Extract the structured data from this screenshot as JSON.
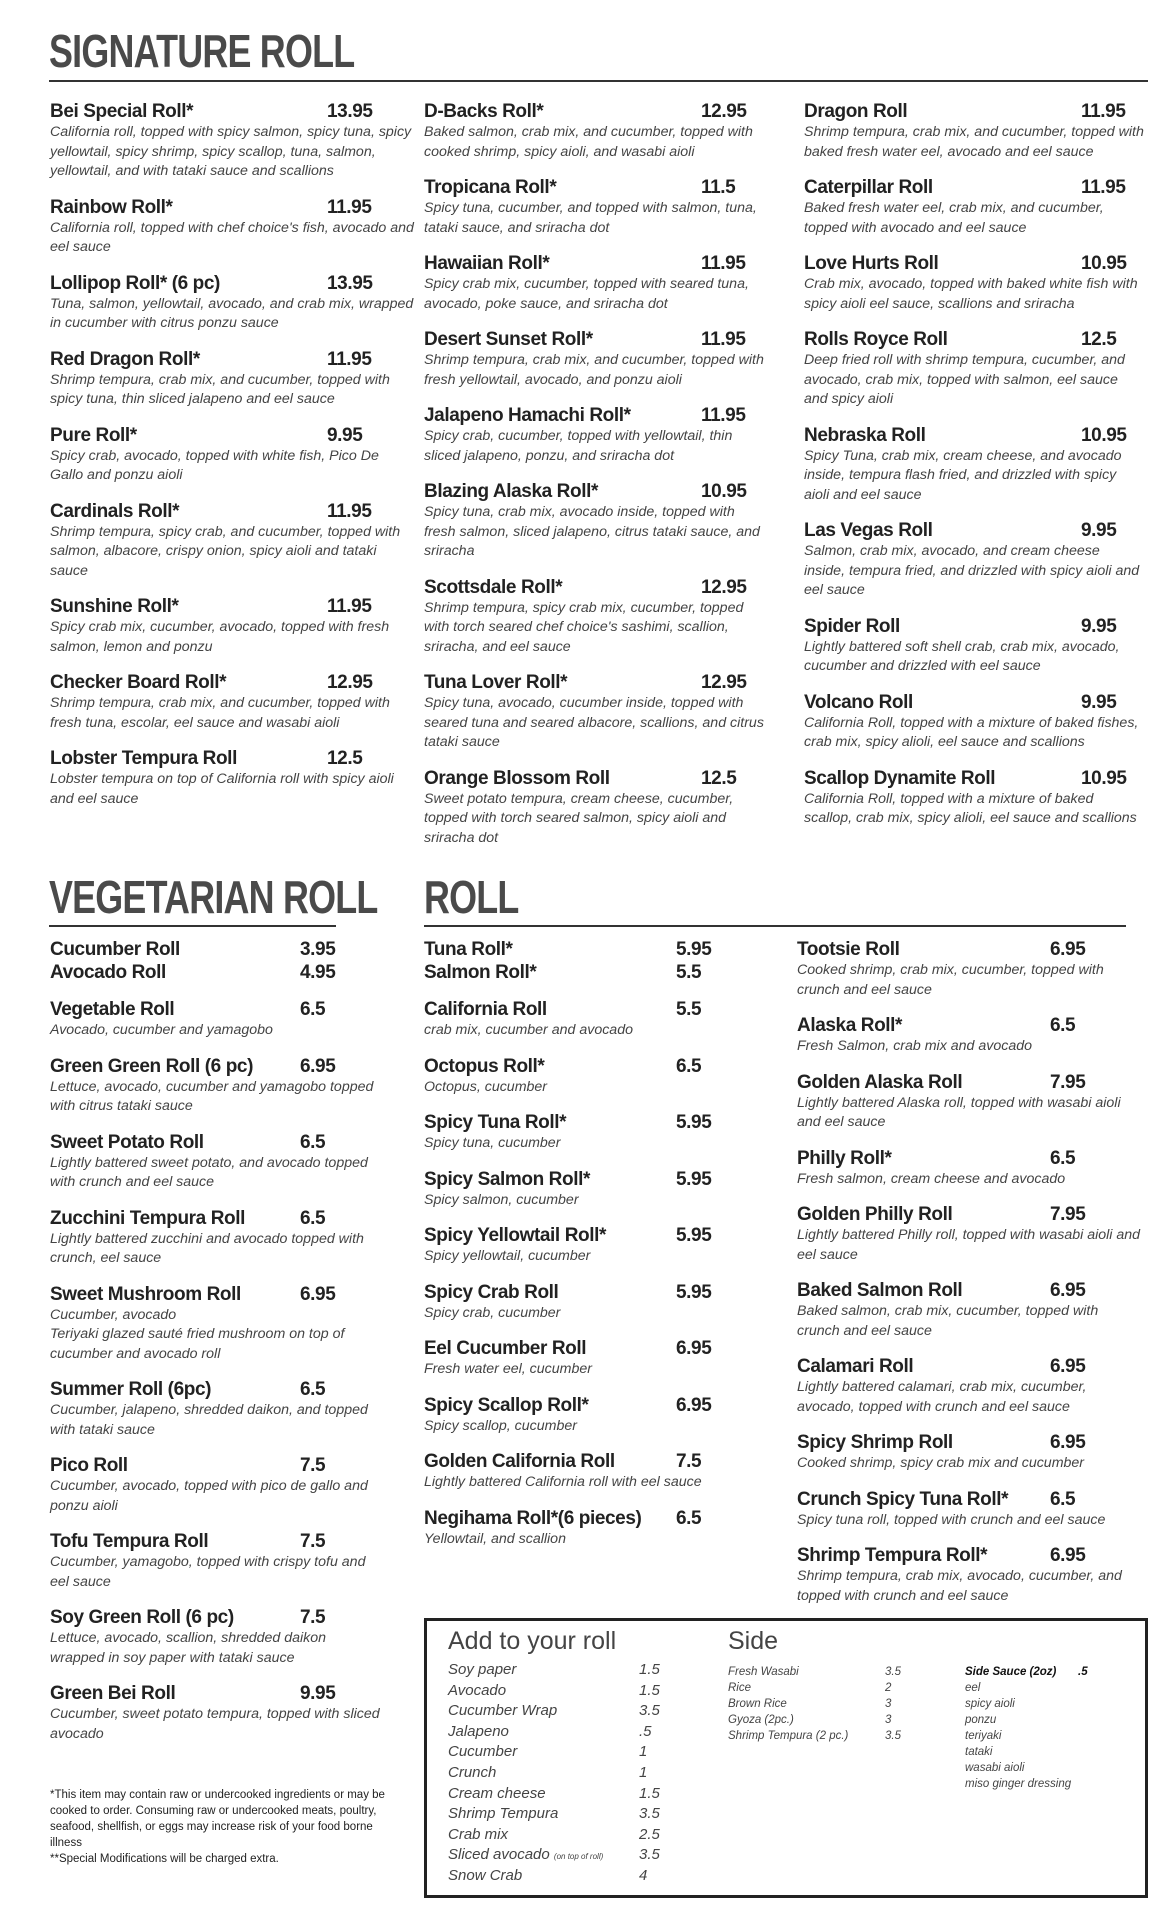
{
  "signature": {
    "title": "SIGNATURE ROLL",
    "columns": [
      [
        {
          "name": "Bei Special Roll*",
          "price": "13.95",
          "desc": "California roll, topped with spicy salmon, spicy tuna, spicy yellowtail, spicy shrimp, spicy scallop, tuna, salmon, yellowtail, and with tataki sauce and scallions"
        },
        {
          "name": "Rainbow Roll*",
          "price": "11.95",
          "desc": "California roll, topped with chef choice's fish, avocado and eel sauce"
        },
        {
          "name": "Lollipop Roll* (6 pc)",
          "price": "13.95",
          "desc": "Tuna, salmon, yellowtail, avocado, and crab mix, wrapped in cucumber with citrus ponzu sauce"
        },
        {
          "name": "Red Dragon Roll*",
          "price": "11.95",
          "desc": "Shrimp tempura, crab mix, and cucumber, topped with spicy tuna, thin sliced jalapeno and eel sauce"
        },
        {
          "name": "Pure Roll*",
          "price": "9.95",
          "desc": "Spicy crab, avocado, topped with white fish, Pico De Gallo and ponzu aioli"
        },
        {
          "name": "Cardinals Roll*",
          "price": "11.95",
          "desc": "Shrimp tempura, spicy crab, and cucumber, topped with salmon, albacore, crispy onion, spicy aioli and tataki sauce"
        },
        {
          "name": "Sunshine Roll*",
          "price": "11.95",
          "desc": "Spicy crab mix, cucumber, avocado, topped with fresh salmon, lemon and ponzu"
        },
        {
          "name": "Checker Board Roll*",
          "price": "12.95",
          "desc": "Shrimp tempura, crab mix, and cucumber, topped with fresh tuna, escolar, eel sauce and wasabi aioli"
        },
        {
          "name": "Lobster Tempura Roll",
          "price": "12.5",
          "desc": "Lobster tempura on top of California roll with spicy aioli and eel sauce"
        }
      ],
      [
        {
          "name": "D-Backs Roll*",
          "price": "12.95",
          "desc": "Baked salmon, crab mix, and cucumber, topped with cooked shrimp, spicy aioli, and wasabi aioli"
        },
        {
          "name": "Tropicana Roll*",
          "price": "11.5",
          "desc": "Spicy tuna, cucumber, and topped with salmon, tuna, tataki sauce, and sriracha dot"
        },
        {
          "name": "Hawaiian Roll*",
          "price": "11.95",
          "desc": "Spicy crab mix, cucumber, topped with seared tuna, avocado, poke sauce, and sriracha dot"
        },
        {
          "name": "Desert Sunset Roll*",
          "price": "11.95",
          "desc": "Shrimp tempura, crab mix, and cucumber, topped with fresh yellowtail, avocado, and ponzu aioli"
        },
        {
          "name": "Jalapeno Hamachi Roll*",
          "price": "11.95",
          "desc": "Spicy crab, cucumber, topped with yellowtail, thin sliced jalapeno, ponzu, and sriracha dot"
        },
        {
          "name": "Blazing Alaska Roll*",
          "price": "10.95",
          "desc": "Spicy tuna, crab mix, avocado inside, topped with fresh salmon, sliced jalapeno, citrus tataki sauce, and sriracha"
        },
        {
          "name": "Scottsdale Roll*",
          "price": "12.95",
          "desc": "Shrimp tempura, spicy crab mix, cucumber, topped with torch seared chef choice's sashimi, scallion, sriracha, and eel sauce"
        },
        {
          "name": "Tuna Lover Roll*",
          "price": "12.95",
          "desc": "Spicy tuna, avocado, cucumber inside, topped with seared tuna and seared albacore, scallions, and citrus tataki sauce"
        },
        {
          "name": "Orange Blossom Roll",
          "price": "12.5",
          "desc": "Sweet potato tempura, cream cheese, cucumber, topped with torch seared salmon, spicy aioli and sriracha dot"
        }
      ],
      [
        {
          "name": "Dragon Roll",
          "price": "11.95",
          "desc": "Shrimp tempura, crab mix, and cucumber, topped with baked fresh water eel, avocado and eel sauce"
        },
        {
          "name": "Caterpillar Roll",
          "price": "11.95",
          "desc": "Baked fresh water eel, crab mix, and cucumber, topped with avocado and eel sauce"
        },
        {
          "name": "Love Hurts Roll",
          "price": "10.95",
          "desc": "Crab mix, avocado, topped with baked white fish with spicy aioli eel sauce, scallions and sriracha"
        },
        {
          "name": "Rolls Royce Roll",
          "price": "12.5",
          "desc": "Deep fried roll with shrimp tempura, cucumber, and avocado, crab mix, topped with salmon, eel sauce and spicy aioli"
        },
        {
          "name": "Nebraska Roll",
          "price": "10.95",
          "desc": "Spicy Tuna, crab mix, cream cheese, and avocado inside, tempura flash fried, and drizzled with spicy aioli and eel sauce"
        },
        {
          "name": "Las Vegas Roll",
          "price": "9.95",
          "desc": "Salmon, crab mix, avocado, and cream cheese inside, tempura fried, and drizzled with spicy aioli and eel sauce"
        },
        {
          "name": "Spider Roll",
          "price": "9.95",
          "desc": "Lightly battered soft shell crab, crab mix, avocado, cucumber and drizzled with eel sauce"
        },
        {
          "name": "Volcano Roll",
          "price": "9.95",
          "desc": "California Roll, topped with a mixture of baked fishes, crab mix, spicy alioli, eel sauce and scallions"
        },
        {
          "name": "Scallop Dynamite Roll",
          "price": "10.95",
          "desc": "California Roll, topped with a mixture of baked scallop, crab mix, spicy alioli, eel sauce and scallions"
        }
      ]
    ]
  },
  "vegetarian": {
    "title": "VEGETARIAN ROLL",
    "items": [
      {
        "name": "Cucumber Roll",
        "price": "3.95",
        "tight": true
      },
      {
        "name": "Avocado Roll",
        "price": "4.95"
      },
      {
        "name": "Vegetable Roll",
        "price": "6.5",
        "desc": "Avocado, cucumber and yamagobo"
      },
      {
        "name": "Green Green Roll (6 pc)",
        "price": "6.95",
        "desc": "Lettuce, avocado, cucumber and yamagobo topped with citrus tataki sauce"
      },
      {
        "name": "Sweet Potato Roll",
        "price": "6.5",
        "desc": "Lightly battered sweet potato, and avocado topped with crunch and eel sauce"
      },
      {
        "name": "Zucchini Tempura Roll",
        "price": "6.5",
        "desc": "Lightly battered zucchini and avocado topped with crunch, eel sauce"
      },
      {
        "name": "Sweet Mushroom Roll",
        "price": "6.95",
        "desc": "Cucumber, avocado\nTeriyaki glazed sauté fried mushroom on top of cucumber and avocado roll"
      },
      {
        "name": "Summer Roll (6pc)",
        "price": "6.5",
        "desc": "Cucumber, jalapeno, shredded daikon, and topped with tataki sauce"
      },
      {
        "name": "Pico Roll",
        "price": "7.5",
        "desc": "Cucumber, avocado, topped with pico de gallo and ponzu aioli"
      },
      {
        "name": "Tofu Tempura Roll",
        "price": "7.5",
        "desc": "Cucumber, yamagobo, topped with crispy tofu and eel sauce"
      },
      {
        "name": "Soy Green Roll (6 pc)",
        "price": "7.5",
        "desc": "Lettuce, avocado, scallion, shredded daikon wrapped in soy paper with tataki sauce"
      },
      {
        "name": "Green Bei Roll",
        "price": "9.95",
        "desc": "Cucumber, sweet potato tempura, topped with sliced avocado"
      }
    ],
    "footnote": "*This item may contain raw or undercooked ingredients or may be cooked to order. Consuming raw or undercooked meats, poultry, seafood, shellfish, or eggs may increase risk of your food borne illness",
    "footnote2": "**Special Modifications will be charged extra."
  },
  "roll": {
    "title": "ROLL",
    "columns": [
      [
        {
          "name": "Tuna Roll*",
          "price": "5.95",
          "tight": true
        },
        {
          "name": "Salmon Roll*",
          "price": "5.5"
        },
        {
          "name": "California Roll",
          "price": "5.5",
          "desc": "crab mix, cucumber and avocado"
        },
        {
          "name": "Octopus Roll*",
          "price": "6.5",
          "desc": "Octopus, cucumber"
        },
        {
          "name": "Spicy Tuna Roll*",
          "price": "5.95",
          "desc": "Spicy tuna, cucumber"
        },
        {
          "name": "Spicy Salmon Roll*",
          "price": "5.95",
          "desc": "Spicy salmon, cucumber"
        },
        {
          "name": "Spicy Yellowtail Roll*",
          "price": "5.95",
          "desc": "Spicy yellowtail, cucumber"
        },
        {
          "name": "Spicy Crab Roll",
          "price": "5.95",
          "desc": "Spicy crab, cucumber"
        },
        {
          "name": "Eel Cucumber Roll",
          "price": "6.95",
          "desc": "Fresh water eel, cucumber"
        },
        {
          "name": "Spicy Scallop Roll*",
          "price": "6.95",
          "desc": "Spicy scallop, cucumber"
        },
        {
          "name": "Golden California Roll",
          "price": "7.5",
          "desc": "Lightly battered California roll with eel sauce"
        },
        {
          "name": "Negihama Roll*(6 pieces)",
          "price": "6.5",
          "desc": "Yellowtail, and scallion"
        }
      ],
      [
        {
          "name": "Tootsie Roll",
          "price": "6.95",
          "desc": "Cooked shrimp, crab mix, cucumber, topped with crunch and eel sauce"
        },
        {
          "name": "Alaska Roll*",
          "price": "6.5",
          "desc": "Fresh Salmon, crab mix and avocado"
        },
        {
          "name": "Golden Alaska Roll",
          "price": "7.95",
          "desc": "Lightly battered Alaska roll, topped with wasabi aioli and eel sauce"
        },
        {
          "name": "Philly Roll*",
          "price": "6.5",
          "desc": "Fresh salmon, cream cheese and avocado"
        },
        {
          "name": "Golden Philly Roll",
          "price": "7.95",
          "desc": "Lightly battered Philly roll, topped with wasabi aioli and eel sauce"
        },
        {
          "name": "Baked Salmon Roll",
          "price": "6.95",
          "desc": "Baked salmon, crab mix, cucumber, topped with crunch and eel sauce"
        },
        {
          "name": "Calamari Roll",
          "price": "6.95",
          "desc": "Lightly battered calamari, crab mix, cucumber, avocado, topped with crunch and eel sauce"
        },
        {
          "name": "Spicy Shrimp Roll",
          "price": "6.95",
          "desc": "Cooked shrimp, spicy crab mix and cucumber"
        },
        {
          "name": "Crunch Spicy Tuna Roll*",
          "price": "6.5",
          "desc": "Spicy tuna roll, topped with crunch and eel sauce"
        },
        {
          "name": "Shrimp Tempura Roll*",
          "price": "6.95",
          "desc": "Shrimp tempura, crab mix, avocado, cucumber, and topped with crunch and eel sauce"
        }
      ]
    ]
  },
  "addons": {
    "title": "Add to your roll",
    "items": [
      {
        "name": "Soy paper",
        "price": "1.5"
      },
      {
        "name": "Avocado",
        "price": "1.5"
      },
      {
        "name": "Cucumber Wrap",
        "price": "3.5"
      },
      {
        "name": "Jalapeno",
        "price": ".5"
      },
      {
        "name": "Cucumber",
        "price": "1"
      },
      {
        "name": "Crunch",
        "price": "1"
      },
      {
        "name": "Cream cheese",
        "price": "1.5"
      },
      {
        "name": "Shrimp Tempura",
        "price": "3.5"
      },
      {
        "name": "Crab mix",
        "price": "2.5"
      },
      {
        "name": "Sliced avocado",
        "note": "(on top of roll)",
        "price": "3.5"
      },
      {
        "name": "Snow Crab",
        "price": "4"
      }
    ]
  },
  "side": {
    "title": "Side",
    "items": [
      {
        "name": "Fresh Wasabi",
        "price": "3.5"
      },
      {
        "name": "Rice",
        "price": "2"
      },
      {
        "name": "Brown Rice",
        "price": "3"
      },
      {
        "name": "Gyoza (2pc.)",
        "price": "3"
      },
      {
        "name": "Shrimp Tempura (2 pc.)",
        "price": "3.5"
      }
    ],
    "sauce_title": "Side Sauce (2oz)",
    "sauce_price": ".5",
    "sauces": [
      "eel",
      "spicy aioli",
      "ponzu",
      "teriyaki",
      "tataki",
      "wasabi aioli",
      "miso ginger dressing"
    ]
  }
}
